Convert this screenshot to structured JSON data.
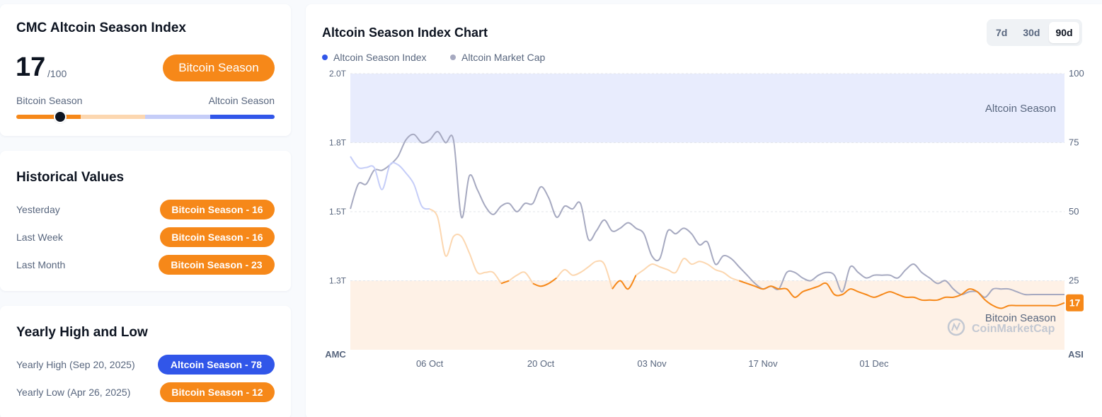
{
  "index_card": {
    "title": "CMC Altcoin Season Index",
    "score": "17",
    "score_max": "/100",
    "status_label": "Bitcoin Season",
    "gauge_left_label": "Bitcoin Season",
    "gauge_right_label": "Altcoin Season",
    "gauge_value": 17,
    "colors": {
      "orange": "#f68819",
      "light_orange": "#fcd7b0",
      "light_blue": "#c5cdf8",
      "blue": "#3156e9"
    }
  },
  "historical": {
    "title": "Historical Values",
    "rows": [
      {
        "label": "Yesterday",
        "value": "Bitcoin Season - 16"
      },
      {
        "label": "Last Week",
        "value": "Bitcoin Season - 16"
      },
      {
        "label": "Last Month",
        "value": "Bitcoin Season - 23"
      }
    ]
  },
  "yearly": {
    "title": "Yearly High and Low",
    "high": {
      "label": "Yearly High",
      "date": "(Sep 20, 2025)",
      "value": "Altcoin Season - 78"
    },
    "low": {
      "label": "Yearly Low",
      "date": "(Apr 26, 2025)",
      "value": "Bitcoin Season - 12"
    }
  },
  "chart_panel": {
    "title": "Altcoin Season Index Chart",
    "tabs": [
      "7d",
      "30d",
      "90d"
    ],
    "active_tab": "90d",
    "legend": [
      {
        "name": "Altcoin Season Index",
        "color": "#3156e9"
      },
      {
        "name": "Altcoin Market Cap",
        "color": "#a6a9c0"
      }
    ],
    "watermark": "CoinMarketCap"
  },
  "chart_data": {
    "type": "line",
    "title": "Altcoin Season Index Chart",
    "x_ticks": [
      "06 Oct",
      "20 Oct",
      "03 Nov",
      "17 Nov",
      "01 Dec"
    ],
    "x_tick_day": [
      10,
      24,
      38,
      52,
      66
    ],
    "x_range_days": [
      0,
      90
    ],
    "left_axis": {
      "label": "AMC",
      "ticks": [
        "2.0T",
        "1.8T",
        "1.5T",
        "1.3T"
      ],
      "tick_positions": [
        100,
        75,
        50,
        25
      ]
    },
    "right_axis": {
      "label": "ASI",
      "ticks": [
        "100",
        "75",
        "50",
        "25"
      ],
      "tick_values": [
        100,
        75,
        50,
        25
      ],
      "range": [
        0,
        100
      ]
    },
    "zones": [
      {
        "name": "Altcoin Season",
        "from": 75,
        "to": 100,
        "color": "#e8ecfd"
      },
      {
        "name": "Bitcoin Season",
        "from": 0,
        "to": 25,
        "color": "#fef1e6"
      }
    ],
    "current_value_label": "17",
    "series": [
      {
        "name": "Altcoin Season Index",
        "axis": "right",
        "day": [
          0,
          1,
          2,
          3,
          4,
          5,
          6,
          7,
          8,
          9,
          10,
          11,
          12,
          13,
          14,
          15,
          16,
          17,
          18,
          19,
          20,
          21,
          22,
          23,
          24,
          25,
          26,
          27,
          28,
          29,
          30,
          31,
          32,
          33,
          34,
          35,
          36,
          37,
          38,
          39,
          40,
          41,
          42,
          43,
          44,
          45,
          46,
          47,
          48,
          49,
          50,
          51,
          52,
          53,
          54,
          55,
          56,
          57,
          58,
          59,
          60,
          61,
          62,
          63,
          64,
          65,
          66,
          67,
          68,
          69,
          70,
          71,
          72,
          73,
          74,
          75,
          76,
          77,
          78,
          79,
          80,
          81,
          82,
          83,
          84,
          85,
          86,
          87,
          88,
          89,
          90
        ],
        "values": [
          70,
          66,
          66,
          66,
          58,
          67,
          67,
          64,
          60,
          52,
          51,
          48,
          34,
          41,
          41,
          35,
          28,
          28,
          28,
          24,
          25,
          27,
          28,
          24,
          23,
          24,
          26,
          29,
          27,
          28,
          30,
          32,
          31,
          22,
          25,
          22,
          27,
          29,
          31,
          30,
          29,
          28,
          33,
          31,
          32,
          31,
          29,
          28,
          26,
          25,
          24,
          23,
          22,
          23,
          22,
          22,
          19,
          21,
          22,
          23,
          24,
          20,
          20,
          22,
          21,
          20,
          19,
          20,
          21,
          20,
          19,
          19,
          18,
          18,
          18,
          19,
          19,
          20,
          22,
          21,
          18,
          16,
          15,
          16,
          16,
          16,
          16,
          16,
          16,
          16,
          17
        ]
      },
      {
        "name": "Altcoin Market Cap",
        "axis": "left",
        "day": [
          0,
          1,
          2,
          3,
          4,
          5,
          6,
          7,
          8,
          9,
          10,
          11,
          12,
          13,
          14,
          15,
          16,
          17,
          18,
          19,
          20,
          21,
          22,
          23,
          24,
          25,
          26,
          27,
          28,
          29,
          30,
          31,
          32,
          33,
          34,
          35,
          36,
          37,
          38,
          39,
          40,
          41,
          42,
          43,
          44,
          45,
          46,
          47,
          48,
          49,
          50,
          51,
          52,
          53,
          54,
          55,
          56,
          57,
          58,
          59,
          60,
          61,
          62,
          63,
          64,
          65,
          66,
          67,
          68,
          69,
          70,
          71,
          72,
          73,
          74,
          75,
          76,
          77,
          78,
          79,
          80,
          81,
          82,
          83,
          84,
          85,
          86,
          87,
          88,
          89,
          90
        ],
        "values": [
          51,
          60,
          60,
          65,
          65,
          67,
          70,
          76,
          78,
          75,
          76,
          79,
          75,
          76,
          48,
          63,
          58,
          52,
          49,
          52,
          53,
          50,
          53,
          53,
          59,
          55,
          48,
          52,
          51,
          53,
          40,
          43,
          47,
          43,
          44,
          46,
          44,
          42,
          34,
          33,
          43,
          42,
          44,
          42,
          38,
          39,
          31,
          34,
          33,
          30,
          27,
          24,
          22,
          23,
          22,
          28,
          28,
          26,
          25,
          27,
          28,
          27,
          21,
          30,
          28,
          26,
          27,
          27,
          27,
          26,
          29,
          31,
          28,
          26,
          24,
          25,
          22,
          20,
          21,
          21,
          19,
          22,
          22,
          22,
          21,
          20,
          20,
          20,
          20,
          20,
          20
        ]
      }
    ]
  }
}
